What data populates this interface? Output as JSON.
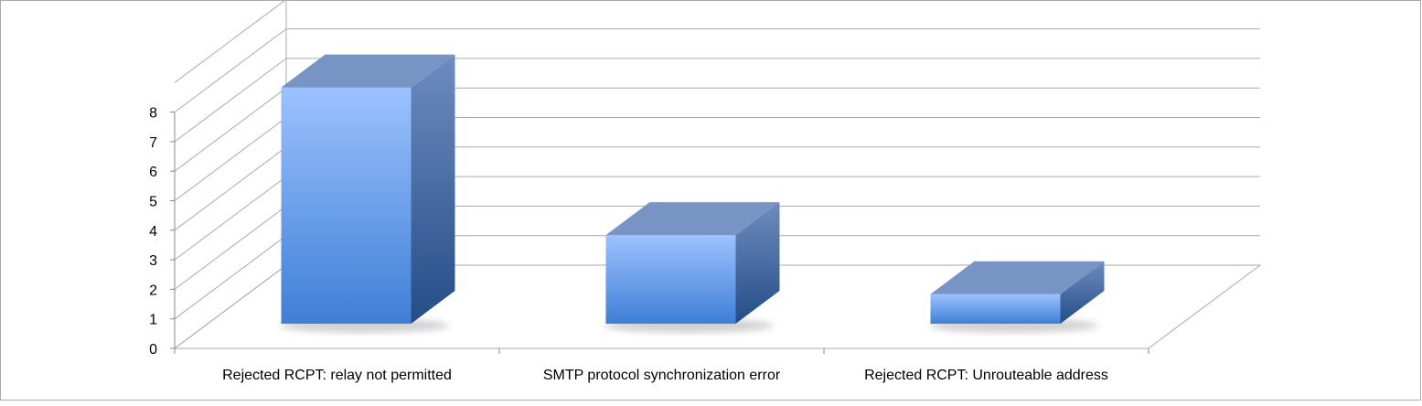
{
  "chart_data": {
    "type": "bar",
    "style": "3d-column",
    "categories": [
      "Rejected RCPT: relay not permitted",
      "SMTP protocol synchronization error",
      "Rejected RCPT: Unrouteable address"
    ],
    "values": [
      8,
      3,
      1
    ],
    "title": "",
    "xlabel": "",
    "ylabel": "",
    "ylim": [
      0,
      8
    ],
    "y_ticks": [
      "0",
      "1",
      "2",
      "3",
      "4",
      "5",
      "6",
      "7",
      "8"
    ],
    "grid": true,
    "legend": "none",
    "colors": {
      "bar_front_top": "#9cc2ff",
      "bar_front_bottom": "#3f7fd6",
      "bar_top": "#7894c4",
      "bar_side_top": "#6e8cc0",
      "bar_side_bottom": "#244d86",
      "gridline": "#aaaaaa",
      "axis": "#888888",
      "frame": "#aaaaaa"
    }
  }
}
